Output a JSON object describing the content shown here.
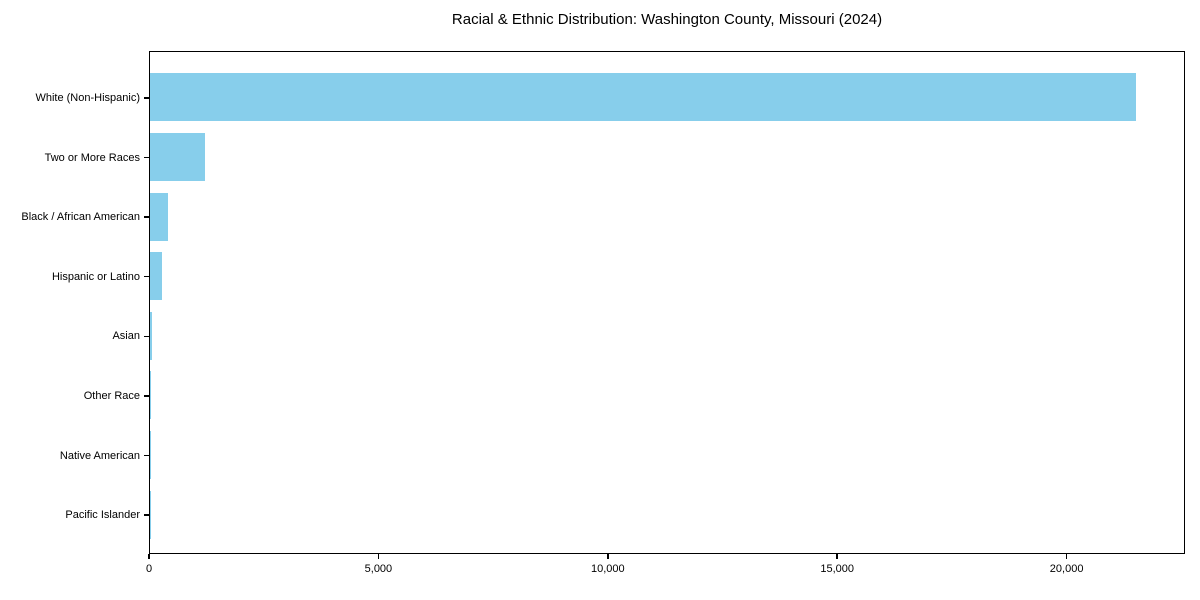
{
  "chart_data": {
    "type": "bar",
    "orientation": "horizontal",
    "title": "Racial & Ethnic Distribution: Washington County, Missouri (2024)",
    "xlabel": "",
    "ylabel": "",
    "categories": [
      "White (Non-Hispanic)",
      "Two or More Races",
      "Black / African American",
      "Hispanic or Latino",
      "Asian",
      "Other Race",
      "Native American",
      "Pacific Islander"
    ],
    "values": [
      21500,
      1190,
      390,
      260,
      50,
      25,
      20,
      5
    ],
    "xlim": [
      0,
      22580
    ],
    "xticks": [
      0,
      5000,
      10000,
      15000,
      20000
    ],
    "xtick_labels": [
      "0",
      "5,000",
      "10,000",
      "15,000",
      "20,000"
    ],
    "grid": false,
    "legend": null,
    "bar_color": "#87CEEB",
    "axis_color": "#000000",
    "text_color": "#000000",
    "background_color": "#ffffff"
  }
}
